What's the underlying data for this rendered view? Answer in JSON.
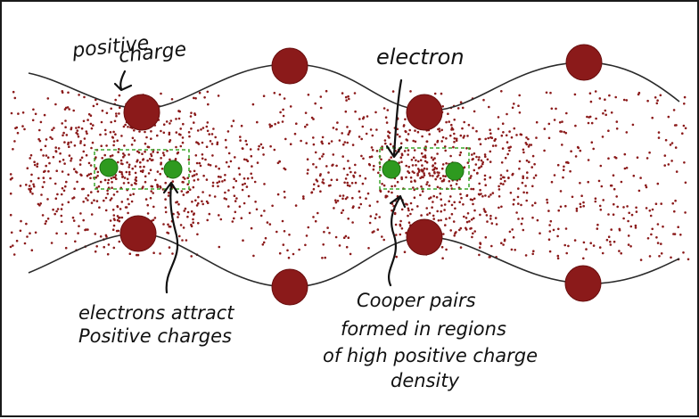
{
  "labels": {
    "positive": "positive",
    "charge": "charge",
    "electron": "electron",
    "attract_line1": "electrons attract",
    "attract_line2": "Positive charges",
    "cooper_line1": "Cooper pairs",
    "cooper_line2": "formed in regions",
    "cooper_line3": "of high positive charge",
    "cooper_line4": "density"
  },
  "colors": {
    "positive_ion": "#8b1a1a",
    "electron": "#2e9a1f",
    "pair_box": "#3aa52a",
    "background_dots": "#8b1a1a",
    "lattice_line": "#2a2a2a"
  }
}
